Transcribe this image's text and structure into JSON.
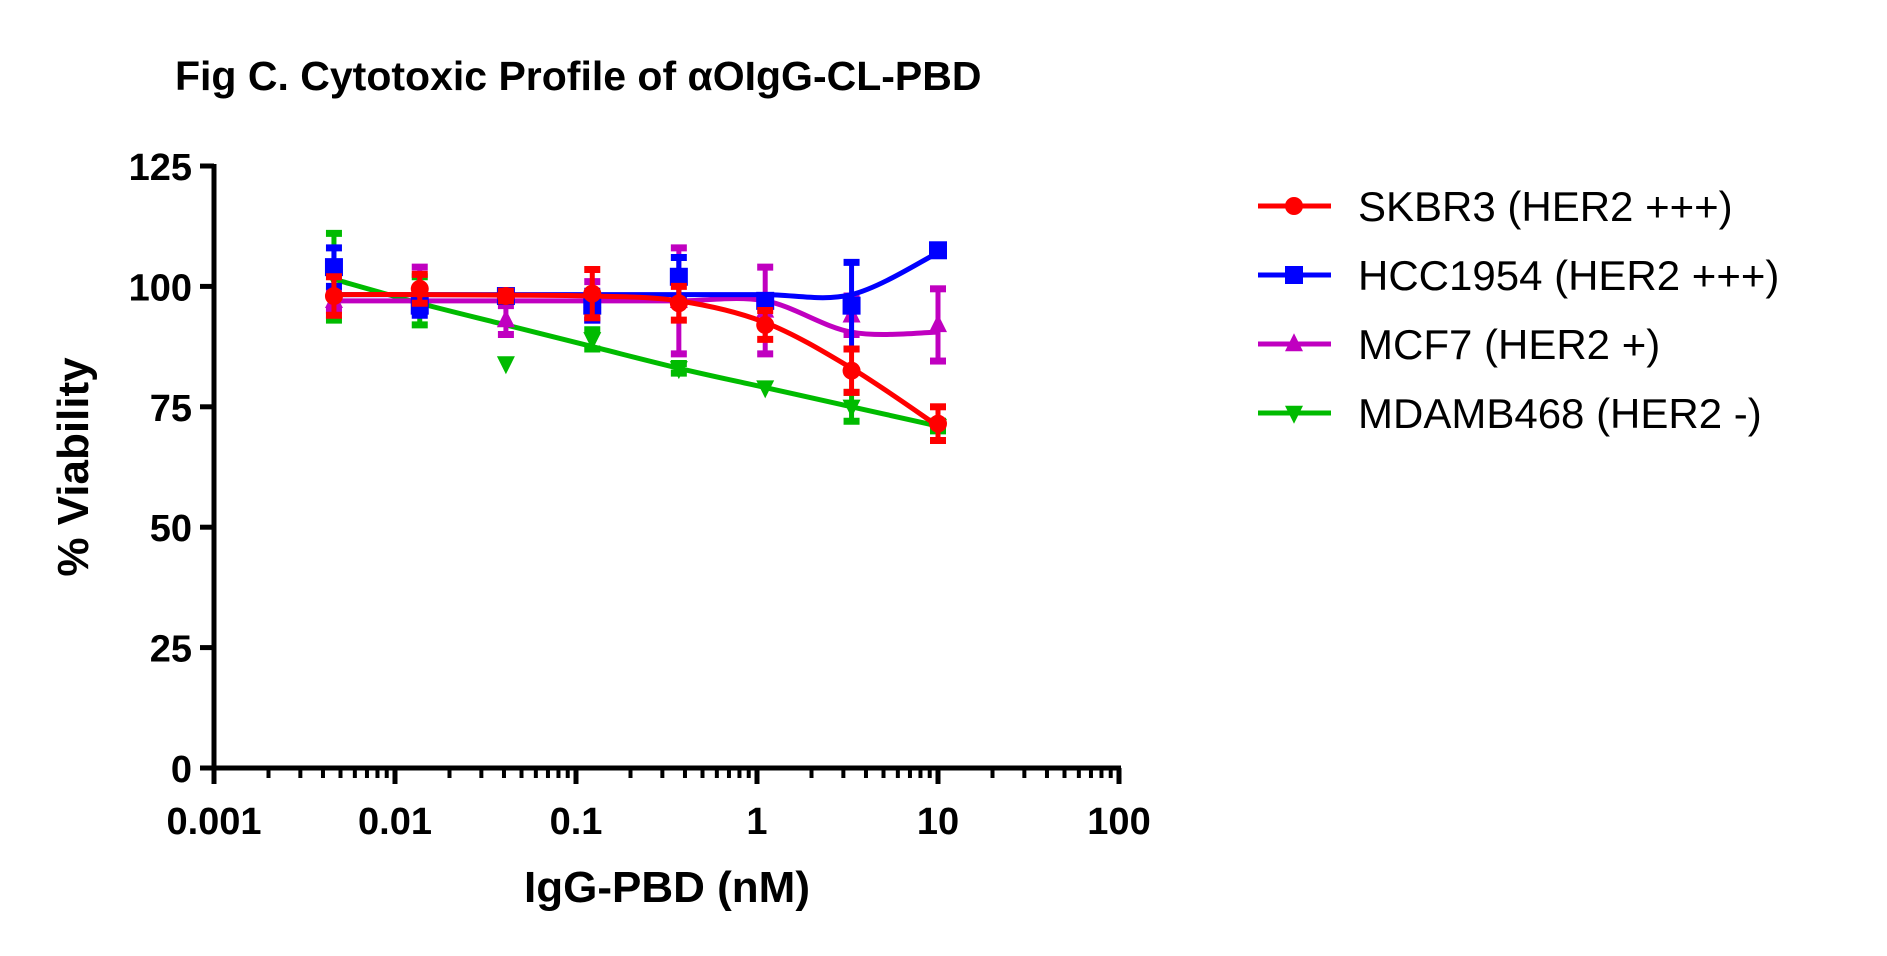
{
  "chart_data": {
    "type": "scatter",
    "title": "Fig C. Cytotoxic Profile of αOIgG-CL-PBD",
    "xlabel": "IgG-PBD (nM)",
    "ylabel": "% Viability",
    "xscale": "log",
    "xlim": [
      0.001,
      100
    ],
    "ylim": [
      0,
      125
    ],
    "xticks": [
      0.001,
      0.01,
      0.1,
      1,
      10,
      100
    ],
    "xtick_labels": [
      "0.001",
      "0.01",
      "0.1",
      "1",
      "10",
      "100"
    ],
    "yticks": [
      0,
      25,
      50,
      75,
      100,
      125
    ],
    "ytick_labels": [
      "0",
      "25",
      "50",
      "75",
      "100",
      "125"
    ],
    "legend_position": "right",
    "x": [
      0.0046,
      0.0137,
      0.041,
      0.123,
      0.37,
      1.11,
      3.33,
      10
    ],
    "series": [
      {
        "name": "SKBR3 (HER2 +++)",
        "color": "#ff0000",
        "marker": "circle",
        "values": [
          98,
          99.5,
          98,
          98.5,
          96.5,
          92,
          82.5,
          71.5
        ],
        "errors": [
          4,
          3,
          1,
          5,
          3.5,
          3,
          4.5,
          3.5
        ],
        "fit": [
          98.3,
          98.3,
          98.2,
          98,
          97,
          92.5,
          83,
          71
        ]
      },
      {
        "name": "HCC1954 (HER2 +++)",
        "color": "#0000ff",
        "marker": "square",
        "values": [
          104,
          96,
          98,
          96,
          102,
          97,
          96,
          107.5
        ],
        "errors": [
          4,
          2,
          1,
          3,
          4,
          1,
          9,
          1
        ],
        "fit": [
          98.3,
          98.3,
          98.3,
          98.3,
          98.3,
          98.3,
          98.3,
          107
        ]
      },
      {
        "name": "MCF7 (HER2 +)",
        "color": "#c000c0",
        "marker": "triangle-up",
        "values": [
          97,
          100,
          93,
          97,
          97,
          95,
          94,
          92
        ],
        "errors": [
          2,
          4,
          3,
          4,
          11,
          9,
          4,
          7.5
        ],
        "fit": [
          97,
          97,
          97,
          97,
          97,
          97,
          90.5,
          90.5
        ]
      },
      {
        "name": "MDAMB468 (HER2 -)",
        "color": "#00bb00",
        "marker": "triangle-down",
        "values": [
          102,
          97,
          84,
          89,
          83,
          79,
          75,
          71
        ],
        "errors": [
          9,
          5,
          0,
          2,
          1,
          0,
          3,
          1
        ],
        "fit": [
          101.5,
          96.5,
          92,
          87.5,
          83,
          79,
          75,
          71
        ]
      }
    ]
  }
}
